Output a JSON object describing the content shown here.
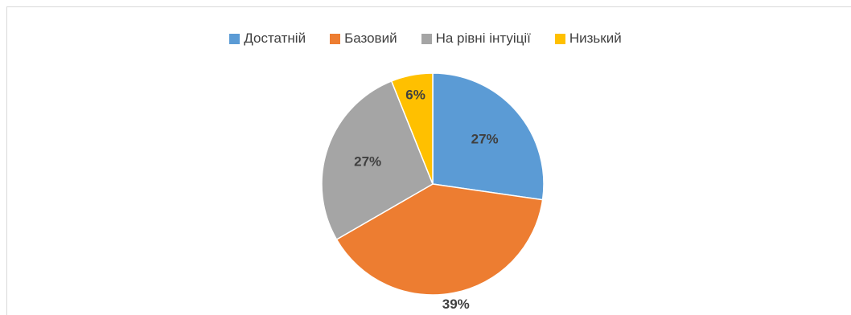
{
  "chart_data": {
    "type": "pie",
    "title": "",
    "categories": [
      "Достатній",
      "Базовий",
      "На рівні інтуіції",
      "Низький"
    ],
    "values": [
      27,
      39,
      27,
      6
    ],
    "labels": [
      "27%",
      "39%",
      "27%",
      "6%"
    ],
    "colors": [
      "#5b9bd5",
      "#ed7d31",
      "#a5a5a5",
      "#ffc000"
    ],
    "legend_position": "top"
  }
}
